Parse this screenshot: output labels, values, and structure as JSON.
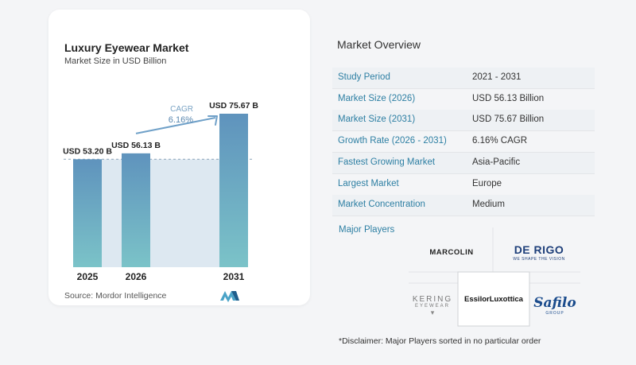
{
  "chart": {
    "title": "Luxury Eyewear Market",
    "subtitle": "Market Size in USD Billion",
    "source": "Source:  Mordor Intelligence",
    "cagr_label": "CAGR",
    "cagr_value": "6.16%"
  },
  "chart_data": {
    "type": "bar",
    "categories": [
      "2025",
      "2026",
      "2031"
    ],
    "values": [
      53.2,
      56.13,
      75.67
    ],
    "data_labels": [
      "USD 53.20 B",
      "USD 56.13 B",
      "USD 75.67 B"
    ],
    "title": "Luxury Eyewear Market",
    "subtitle": "Market Size in USD Billion",
    "xlabel": "",
    "ylabel": "",
    "ylim": [
      0,
      80
    ],
    "grid": false,
    "annotations": [
      "CAGR",
      "6.16%"
    ],
    "colors": {
      "bar_top": "#5f93bd",
      "bar_bottom": "#7bc3c8",
      "band": "#dde8f1",
      "arrow": "#6fa0c8"
    }
  },
  "overview": {
    "title": "Market Overview",
    "rows": [
      {
        "label": "Study Period",
        "value": "2021 - 2031"
      },
      {
        "label": "Market Size (2026)",
        "value": "USD 56.13 Billion"
      },
      {
        "label": "Market Size (2031)",
        "value": "USD 75.67 Billion"
      },
      {
        "label": "Growth Rate (2026 - 2031)",
        "value": "6.16% CAGR"
      },
      {
        "label": "Fastest Growing Market",
        "value": "Asia-Pacific"
      },
      {
        "label": "Largest Market",
        "value": "Europe"
      },
      {
        "label": "Market Concentration",
        "value": "Medium"
      }
    ]
  },
  "players": {
    "title": "Major Players",
    "names": {
      "marcolin": "MARCOLIN",
      "derigo": "DE RIGO",
      "derigo_tagline": "WE SHAPE THE VISION",
      "kering": "KERING",
      "kering_sub": "EYEWEAR",
      "essilor": "EssilorLuxottica",
      "safilo": "Safilo",
      "safilo_sub": "GROUP"
    }
  },
  "disclaimer": "*Disclaimer: Major Players sorted in no particular order",
  "colors": {
    "accent": "#2d7fa3",
    "row_shade": "#eef1f4",
    "page_bg": "#f4f5f7"
  }
}
